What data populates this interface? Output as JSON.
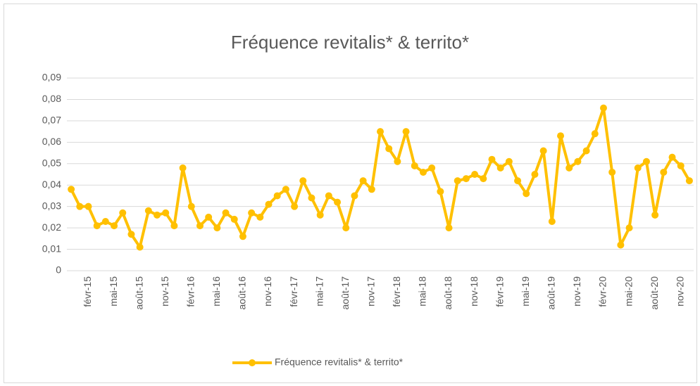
{
  "chart_data": {
    "type": "line",
    "title": "Fréquence revitalis* & territo*",
    "categories": [
      null,
      null,
      "févr-15",
      null,
      null,
      "mai-15",
      null,
      null,
      "août-15",
      null,
      null,
      "nov-15",
      null,
      null,
      "févr-16",
      null,
      null,
      "mai-16",
      null,
      null,
      "août-16",
      null,
      null,
      "nov-16",
      null,
      null,
      "févr-17",
      null,
      null,
      "mai-17",
      null,
      null,
      "août-17",
      null,
      null,
      "nov-17",
      null,
      null,
      "févr-18",
      null,
      null,
      "mai-18",
      null,
      null,
      "août-18",
      null,
      null,
      "nov-18",
      null,
      null,
      "févr-19",
      null,
      null,
      "mai-19",
      null,
      null,
      "août-19",
      null,
      null,
      "nov-19",
      null,
      null,
      "févr-20",
      null,
      null,
      "mai-20",
      null,
      null,
      "août-20",
      null,
      null,
      "nov-20",
      null
    ],
    "series": [
      {
        "name": "Fréquence revitalis* & territo*",
        "color": "#ffc000",
        "values": [
          0.038,
          0.03,
          0.03,
          0.021,
          0.023,
          0.021,
          0.027,
          0.017,
          0.011,
          0.028,
          0.026,
          0.027,
          0.021,
          0.048,
          0.03,
          0.021,
          0.025,
          0.02,
          0.027,
          0.024,
          0.016,
          0.027,
          0.025,
          0.031,
          0.035,
          0.038,
          0.03,
          0.042,
          0.034,
          0.026,
          0.035,
          0.032,
          0.02,
          0.035,
          0.042,
          0.038,
          0.065,
          0.057,
          0.051,
          0.065,
          0.049,
          0.046,
          0.048,
          0.037,
          0.02,
          0.042,
          0.043,
          0.045,
          0.043,
          0.052,
          0.048,
          0.051,
          0.042,
          0.036,
          0.045,
          0.056,
          0.023,
          0.063,
          0.048,
          0.051,
          0.056,
          0.064,
          0.076,
          0.046,
          0.012,
          0.02,
          0.048,
          0.051,
          0.026,
          0.046,
          0.053,
          0.049,
          0.042
        ]
      }
    ],
    "ylim": [
      0,
      0.09
    ],
    "yticks": [
      0,
      {
        "value": 0.01,
        "label": "0,01"
      },
      {
        "value": 0.02,
        "label": "0,02"
      },
      {
        "value": 0.03,
        "label": "0,03"
      },
      {
        "value": 0.04,
        "label": "0,04"
      },
      {
        "value": 0.05,
        "label": "0,05"
      },
      {
        "value": 0.06,
        "label": "0,06"
      },
      {
        "value": 0.07,
        "label": "0,07"
      },
      {
        "value": 0.08,
        "label": "0,08"
      },
      {
        "value": 0.09,
        "label": "0,09"
      }
    ],
    "grid": true,
    "legend": "bottom"
  }
}
